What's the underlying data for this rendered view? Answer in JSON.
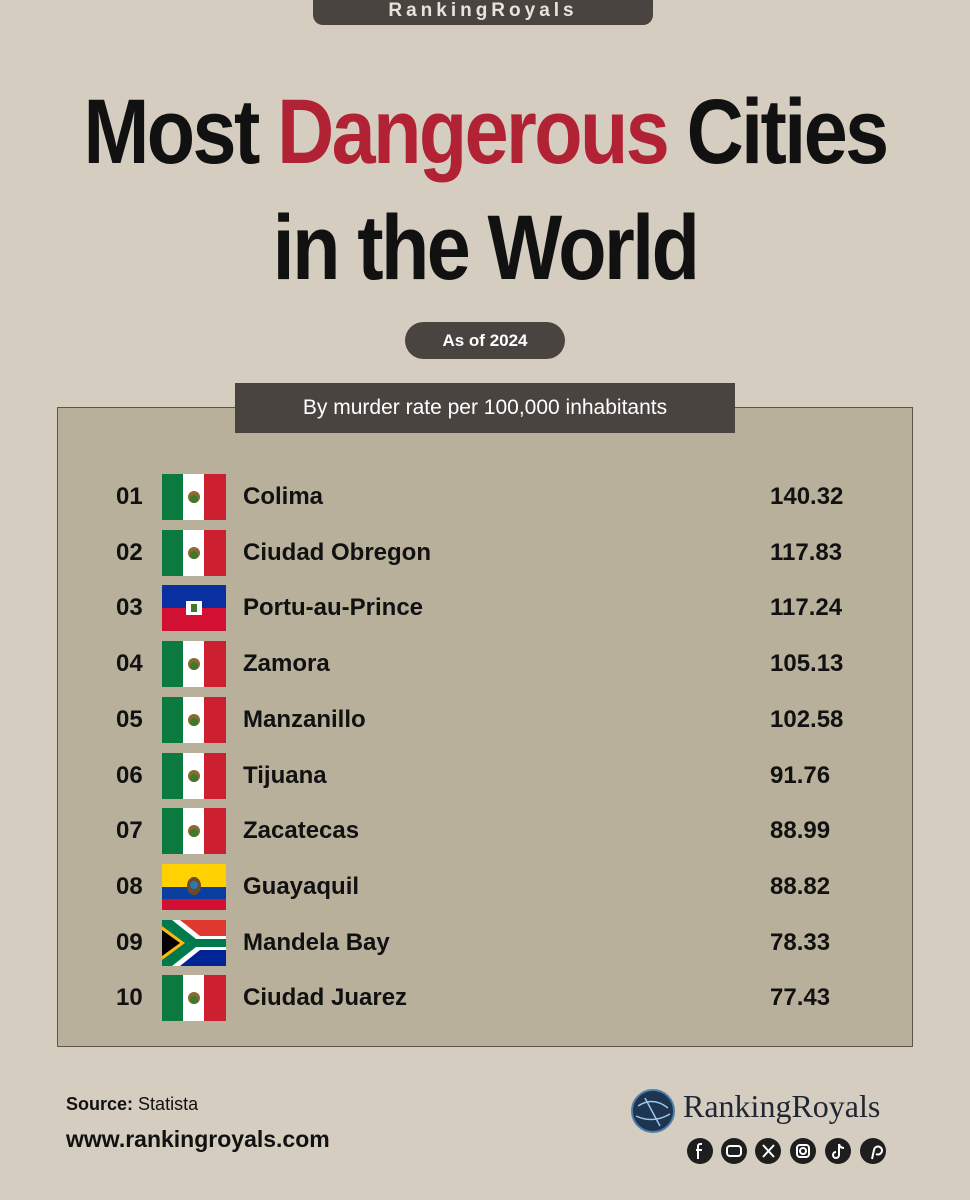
{
  "header": {
    "brand": "RankingRoyals",
    "title": {
      "part1": "Most",
      "highlight": "Dangerous",
      "part2": "Cities",
      "line2": "in the World"
    },
    "badge": "As of 2024"
  },
  "table": {
    "subtitle": "By murder rate per 100,000 inhabitants",
    "rows": [
      {
        "rank": "01",
        "city": "Colima",
        "value": 140.32
      },
      {
        "rank": "02",
        "city": "Ciudad Obregon",
        "value": 117.83
      },
      {
        "rank": "03",
        "city": "Portu-au-Prince",
        "value": 117.24
      },
      {
        "rank": "04",
        "city": "Zamora",
        "value": 105.13
      },
      {
        "rank": "05",
        "city": "Manzanillo",
        "value": 102.58
      },
      {
        "rank": "06",
        "city": "Tijuana",
        "value": 91.76
      },
      {
        "rank": "07",
        "city": "Zacatecas",
        "value": 88.99
      },
      {
        "rank": "08",
        "city": "Guayaquil",
        "value": 88.82
      },
      {
        "rank": "09",
        "city": "Mandela Bay",
        "value": 78.33
      },
      {
        "rank": "10",
        "city": "Ciudad Juarez",
        "value": 77.43
      }
    ]
  },
  "footer": {
    "source_label": "Source:",
    "source": "Statista",
    "website": "www.rankingroyals.com",
    "logo": "RankingRoyals"
  }
}
